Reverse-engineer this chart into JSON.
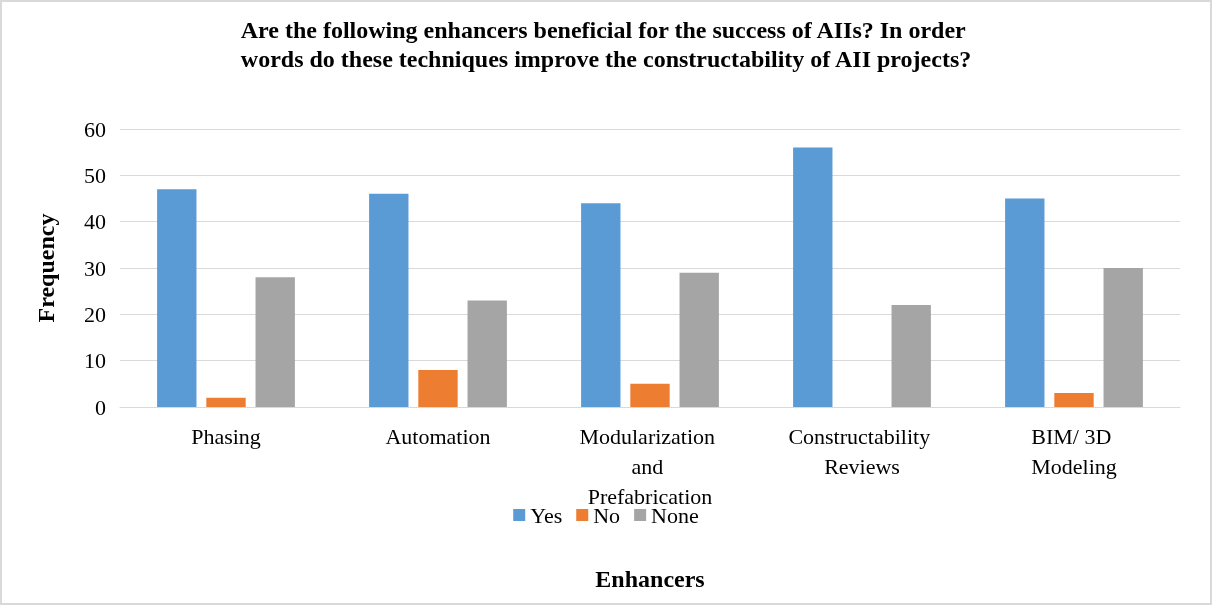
{
  "chart_data": {
    "type": "bar",
    "title": "Are the following enhancers beneficial for the success of AIIs? In order words do these techniques improve the constructability of AII projects?",
    "xlabel": "Enhancers",
    "ylabel": "Frequency",
    "categories": [
      "Phasing",
      "Automation",
      "Modularization and Prefabrication",
      "Constructability Reviews",
      "BIM/ 3D Modeling"
    ],
    "series": [
      {
        "name": "Yes",
        "color": "#5b9bd5",
        "values": [
          47,
          46,
          44,
          56,
          45
        ]
      },
      {
        "name": "No",
        "color": "#ed7d31",
        "values": [
          2,
          8,
          5,
          0,
          3
        ]
      },
      {
        "name": "None",
        "color": "#a5a5a5",
        "values": [
          28,
          23,
          29,
          22,
          30
        ]
      }
    ],
    "ylim": [
      0,
      60
    ],
    "yticks": [
      0,
      10,
      20,
      30,
      40,
      50,
      60
    ],
    "grid": "y",
    "legend": "bottom"
  }
}
